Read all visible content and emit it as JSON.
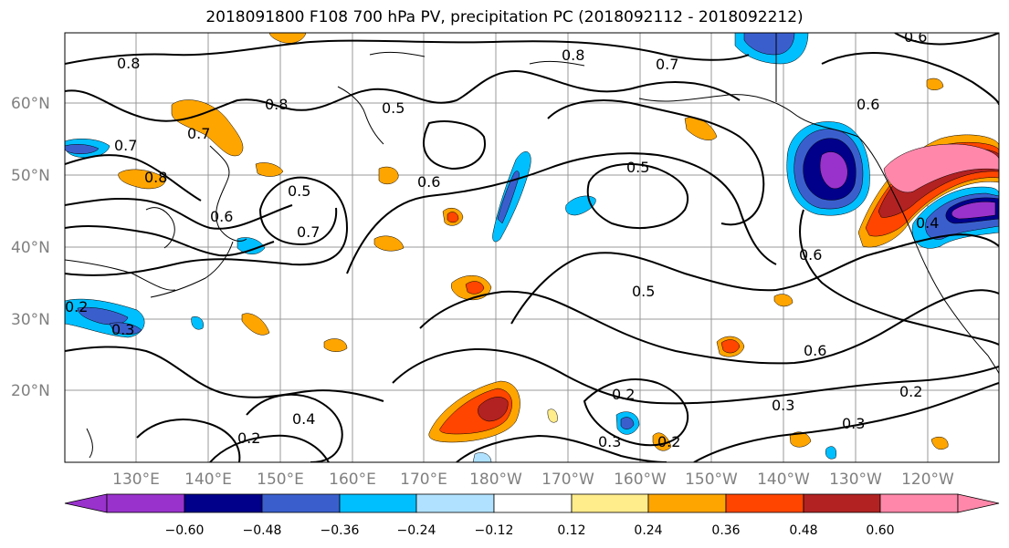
{
  "title": "2018091800 F108 700 hPa PV, precipitation PC (2018092112 - 2018092212)",
  "map": {
    "lat_labels": [
      "60°N",
      "50°N",
      "40°N",
      "30°N",
      "20°N"
    ],
    "lon_labels": [
      "130°E",
      "140°E",
      "150°E",
      "160°E",
      "170°E",
      "180°W",
      "170°W",
      "160°W",
      "150°W",
      "140°W",
      "130°W",
      "120°W"
    ],
    "gridlines": true,
    "contour_labels": [
      "0.8",
      "0.8",
      "0.7",
      "0.6",
      "0.6",
      "0.8",
      "0.8",
      "0.7",
      "0.5",
      "0.5",
      "0.7",
      "0.6",
      "0.6",
      "0.5",
      "0.6",
      "0.5",
      "0.7",
      "0.4",
      "0.3",
      "0.2",
      "0.2",
      "0.3",
      "0.2",
      "0.3",
      "0.3",
      "0.2",
      "0.2",
      "0.6",
      "0.4"
    ]
  },
  "colorbar": {
    "ticks": [
      "−0.60",
      "−0.48",
      "−0.36",
      "−0.24",
      "−0.12",
      "0.12",
      "0.24",
      "0.36",
      "0.48",
      "0.60"
    ],
    "colors": [
      "#9932CC",
      "#00008B",
      "#3A5FCD",
      "#00BFFF",
      "#B0E2FF",
      "#FFFFFF",
      "#FFEC8B",
      "#FFA500",
      "#FF4500",
      "#B22222",
      "#FF88AA"
    ]
  }
}
